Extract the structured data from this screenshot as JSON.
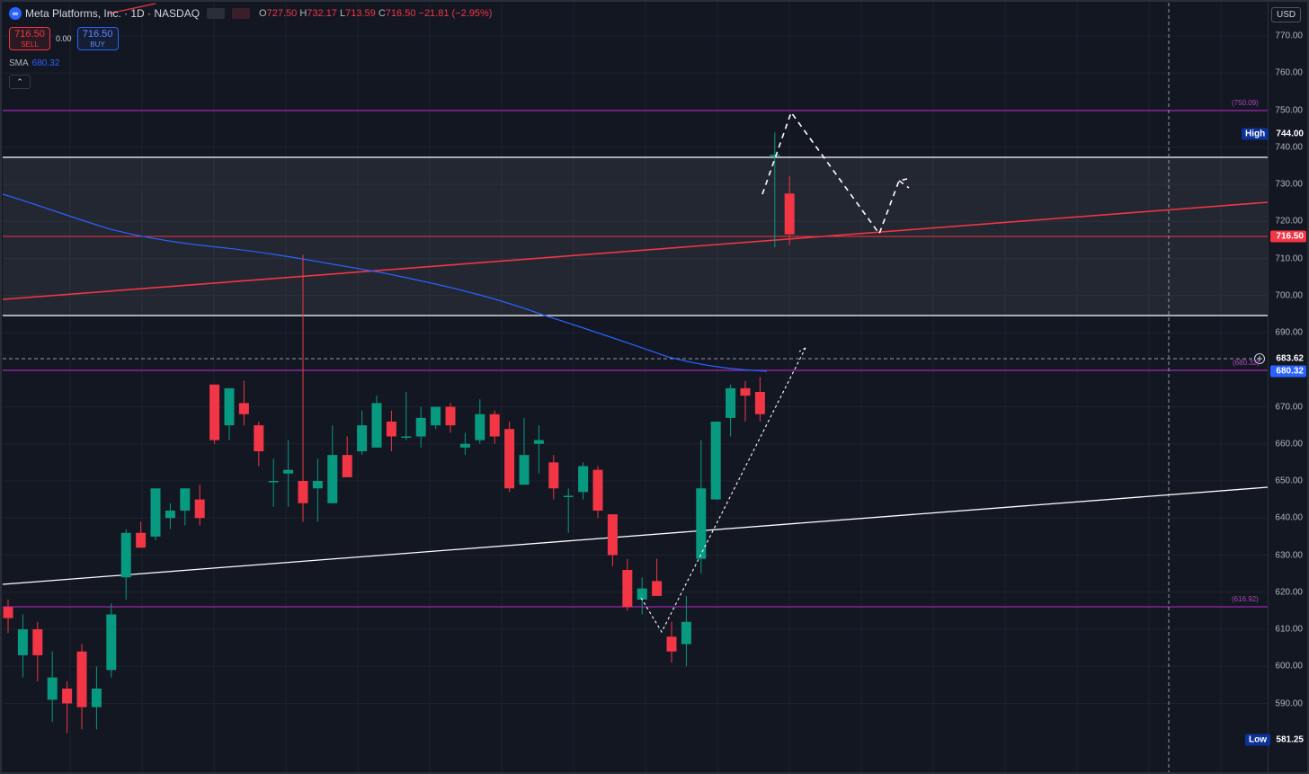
{
  "header": {
    "logo_icon": "meta-logo-icon",
    "symbol_title": "Meta Platforms, Inc. · 1D · NASDAQ",
    "open_label": "O",
    "open": "727.50",
    "high_label": "H",
    "high": "732.17",
    "low_label": "L",
    "low": "713.59",
    "close_label": "C",
    "close": "716.50",
    "change": "−21.81 (−2.95%)"
  },
  "trade": {
    "sell_price": "716.50",
    "sell_label": "SELL",
    "spread": "0.00",
    "buy_price": "716.50",
    "buy_label": "BUY"
  },
  "indicator": {
    "name": "SMA",
    "value": "680.32",
    "collapse_icon": "chevron-up-icon"
  },
  "currency": "USD",
  "price_axis": {
    "ticks": [
      "770.00",
      "760.00",
      "750.00",
      "740.00",
      "730.00",
      "720.00",
      "710.00",
      "700.00",
      "690.00",
      "680.00",
      "670.00",
      "660.00",
      "650.00",
      "640.00",
      "630.00",
      "620.00",
      "610.00",
      "600.00",
      "590.00"
    ],
    "labels": {
      "high_tag": "High",
      "high_value": "744.00",
      "last_price": "716.50",
      "crosshair_price": "683.62",
      "sma_price": "680.32",
      "low_tag": "Low",
      "low_value": "581.25"
    }
  },
  "level_labels": {
    "upper": "(750.09)",
    "middle": "(680.32)",
    "lower": "(616.92)"
  },
  "colors": {
    "up": "#089981",
    "down": "#f23645",
    "sma": "#2962ff",
    "level": "#9c27b0",
    "background": "#131722"
  },
  "chart_data": {
    "type": "candlestick",
    "ylim": [
      578,
      775
    ],
    "candles": [
      {
        "o": 616,
        "h": 618,
        "l": 609,
        "c": 613
      },
      {
        "o": 603,
        "h": 614,
        "l": 597,
        "c": 610
      },
      {
        "o": 610,
        "h": 612,
        "l": 596,
        "c": 603
      },
      {
        "o": 591,
        "h": 604,
        "l": 585,
        "c": 597
      },
      {
        "o": 594,
        "h": 596,
        "l": 582,
        "c": 590
      },
      {
        "o": 604,
        "h": 606,
        "l": 583,
        "c": 589
      },
      {
        "o": 589,
        "h": 600,
        "l": 583,
        "c": 594
      },
      {
        "o": 599,
        "h": 617,
        "l": 597,
        "c": 614
      },
      {
        "o": 624,
        "h": 637,
        "l": 618,
        "c": 636
      },
      {
        "o": 636,
        "h": 639,
        "l": 632,
        "c": 632
      },
      {
        "o": 635,
        "h": 648,
        "l": 634,
        "c": 648
      },
      {
        "o": 640,
        "h": 644,
        "l": 637,
        "c": 642
      },
      {
        "o": 642,
        "h": 648,
        "l": 638,
        "c": 648
      },
      {
        "o": 645,
        "h": 649,
        "l": 638,
        "c": 640
      },
      {
        "o": 676,
        "h": 676,
        "l": 660,
        "c": 661
      },
      {
        "o": 665,
        "h": 674,
        "l": 661,
        "c": 675
      },
      {
        "o": 671,
        "h": 677,
        "l": 665,
        "c": 668
      },
      {
        "o": 665,
        "h": 666,
        "l": 654,
        "c": 658
      },
      {
        "o": 650,
        "h": 656,
        "l": 643,
        "c": 650
      },
      {
        "o": 652,
        "h": 661,
        "l": 643,
        "c": 653
      },
      {
        "o": 650,
        "h": 711,
        "l": 639,
        "c": 644
      },
      {
        "o": 648,
        "h": 656,
        "l": 639,
        "c": 650
      },
      {
        "o": 644,
        "h": 665,
        "l": 644,
        "c": 657
      },
      {
        "o": 657,
        "h": 662,
        "l": 651,
        "c": 651
      },
      {
        "o": 658,
        "h": 669,
        "l": 657,
        "c": 665
      },
      {
        "o": 659,
        "h": 673,
        "l": 659,
        "c": 671
      },
      {
        "o": 666,
        "h": 669,
        "l": 658,
        "c": 662
      },
      {
        "o": 662,
        "h": 674,
        "l": 661,
        "c": 662
      },
      {
        "o": 662,
        "h": 670,
        "l": 659,
        "c": 667
      },
      {
        "o": 665,
        "h": 670,
        "l": 664,
        "c": 670
      },
      {
        "o": 670,
        "h": 671,
        "l": 663,
        "c": 665
      },
      {
        "o": 659,
        "h": 663,
        "l": 657,
        "c": 660
      },
      {
        "o": 661,
        "h": 672,
        "l": 660,
        "c": 668
      },
      {
        "o": 668,
        "h": 669,
        "l": 660,
        "c": 662
      },
      {
        "o": 664,
        "h": 666,
        "l": 647,
        "c": 648
      },
      {
        "o": 649,
        "h": 667,
        "l": 649,
        "c": 657
      },
      {
        "o": 660,
        "h": 665,
        "l": 652,
        "c": 661
      },
      {
        "o": 655,
        "h": 657,
        "l": 645,
        "c": 648
      },
      {
        "o": 646,
        "h": 648,
        "l": 636,
        "c": 646
      },
      {
        "o": 647,
        "h": 655,
        "l": 645,
        "c": 654
      },
      {
        "o": 653,
        "h": 654,
        "l": 640,
        "c": 642
      },
      {
        "o": 641,
        "h": 641,
        "l": 627,
        "c": 630
      },
      {
        "o": 626,
        "h": 629,
        "l": 615,
        "c": 616
      },
      {
        "o": 618,
        "h": 624,
        "l": 614,
        "c": 621
      },
      {
        "o": 623,
        "h": 629,
        "l": 619,
        "c": 619
      },
      {
        "o": 608,
        "h": 612,
        "l": 601,
        "c": 604
      },
      {
        "o": 606,
        "h": 619,
        "l": 600,
        "c": 612
      },
      {
        "o": 629,
        "h": 661,
        "l": 625,
        "c": 648
      },
      {
        "o": 645,
        "h": 666,
        "l": 645,
        "c": 666
      },
      {
        "o": 667,
        "h": 676,
        "l": 662,
        "c": 675
      },
      {
        "o": 675,
        "h": 677,
        "l": 666,
        "c": 673
      },
      {
        "o": 674,
        "h": 678,
        "l": 666,
        "c": 668
      },
      {
        "o": 738,
        "h": 744,
        "l": 713,
        "c": 738
      },
      {
        "o": 727.5,
        "h": 732.17,
        "l": 713.59,
        "c": 716.5
      }
    ]
  }
}
